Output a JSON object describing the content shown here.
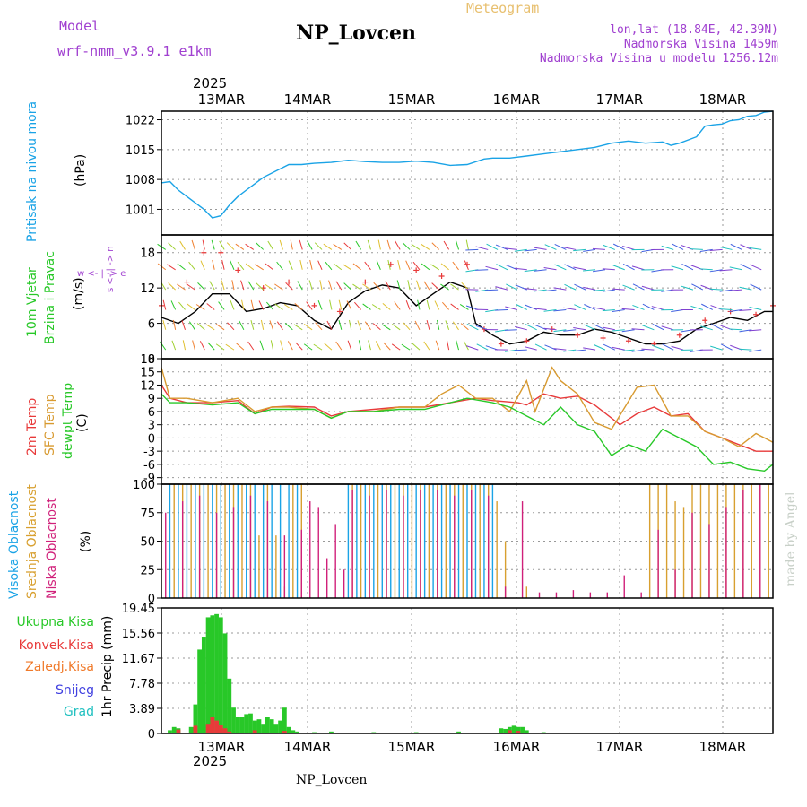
{
  "header": {
    "model_label": "Model",
    "model_name": "wrf-nmm_v3.9.1  e1km",
    "title": "NP_Lovcen",
    "meteogram": "Meteogram",
    "lonlat": "lon,lat (18.84E, 42.39N)",
    "altitude": "Nadmorska Visina 1459m",
    "model_altitude": "Nadmorska Visina u modelu 1256.12m",
    "year_top": "2025",
    "year_bottom": "2025",
    "footer": "NP_Lovcen",
    "credit": "made by Angel"
  },
  "colors": {
    "pressure": "#1aa3e6",
    "temp2m": "#e83a3a",
    "sfc": "#d89a30",
    "dewpt": "#28c828",
    "total_precip": "#28c828",
    "conv_precip": "#e83a3a",
    "frozen": "#f07a2a",
    "snow": "#4040e0",
    "graupel": "#20c0c0",
    "high_cloud": "#1aa3e6",
    "mid_cloud": "#d8a030",
    "low_cloud": "#d0207a",
    "model_text": "#a040d0",
    "meteogram_text": "#e8c070"
  },
  "chart_data": [
    {
      "type": "line",
      "panel": "pressure",
      "title": "",
      "ylabel": [
        "Pritisak na nivou mora",
        "(hPa)"
      ],
      "x_ticks": [
        "13MAR",
        "14MAR",
        "15MAR",
        "16MAR",
        "17MAR",
        "18MAR"
      ],
      "y_ticks": [
        1001,
        1008,
        1015,
        1022
      ],
      "xlim": [
        0,
        144
      ],
      "ylim": [
        995,
        1024
      ],
      "series": [
        {
          "x": [
            0,
            2,
            4,
            6,
            8,
            10,
            12,
            14,
            16,
            18,
            20,
            22,
            24,
            27,
            30,
            33,
            36,
            40,
            44,
            48,
            52,
            56,
            60,
            64,
            68,
            72,
            76,
            78,
            82,
            86,
            90,
            94,
            98,
            102,
            106,
            110,
            114,
            118,
            120,
            122,
            126,
            128,
            130,
            132,
            134,
            136,
            138,
            140,
            142,
            144
          ],
          "y": [
            1007.2,
            1007.5,
            1005.5,
            1004,
            1002.5,
            1001,
            999,
            999.5,
            1002,
            1004,
            1005.5,
            1007,
            1008.5,
            1010,
            1011.5,
            1011.5,
            1011.8,
            1012,
            1012.5,
            1012.2,
            1012,
            1012,
            1012.3,
            1012,
            1011.3,
            1011.5,
            1012.8,
            1013,
            1013,
            1013.5,
            1014,
            1014.5,
            1015,
            1015.5,
            1016.5,
            1017,
            1016.5,
            1016.8,
            1016,
            1016.5,
            1018,
            1020.5,
            1020.8,
            1021,
            1021.8,
            1022,
            1022.8,
            1023,
            1023.8,
            1024
          ]
        }
      ]
    },
    {
      "type": "line",
      "panel": "wind",
      "title": "",
      "ylabel": [
        "10m Vjetar",
        "Brzina i Pravac",
        "(m/s)"
      ],
      "compass": [
        "w <- | -> e",
        "s <- | -> n"
      ],
      "y_ticks": [
        0,
        6,
        12,
        18
      ],
      "xlim": [
        0,
        144
      ],
      "ylim": [
        0,
        21
      ],
      "series": [
        {
          "name": "speed",
          "x": [
            0,
            4,
            8,
            12,
            16,
            20,
            24,
            28,
            32,
            36,
            40,
            44,
            48,
            52,
            56,
            60,
            64,
            68,
            72,
            74,
            78,
            82,
            86,
            90,
            94,
            98,
            102,
            106,
            110,
            114,
            118,
            122,
            126,
            130,
            134,
            138,
            142,
            144
          ],
          "y": [
            7,
            6,
            8,
            11,
            11,
            8,
            8.5,
            9.5,
            9,
            6.5,
            5,
            9.5,
            11.5,
            12.5,
            12,
            9,
            11,
            13,
            12,
            6,
            4,
            2.5,
            3,
            4.5,
            4,
            4,
            5,
            4.5,
            3.5,
            2.5,
            2.5,
            3,
            5,
            6,
            7,
            6.5,
            8,
            8
          ]
        },
        {
          "name": "gust",
          "x": [
            0,
            6,
            10,
            14,
            18,
            24,
            30,
            36,
            42,
            48,
            54,
            60,
            66,
            72,
            76,
            80,
            86,
            92,
            98,
            104,
            110,
            116,
            122,
            128,
            134,
            140,
            144
          ],
          "y": [
            9,
            13,
            18,
            18,
            15,
            12,
            13,
            9,
            8,
            13,
            16,
            15,
            14,
            16,
            5,
            2.5,
            3,
            5,
            4,
            3.5,
            3,
            2.5,
            4,
            6.5,
            8,
            7.5,
            9
          ]
        }
      ]
    },
    {
      "type": "line",
      "panel": "temperature",
      "title": "",
      "ylabel": [
        "2m Temp",
        "SFC Temp",
        "dewpt Temp",
        "(C)"
      ],
      "y_ticks": [
        -9,
        -6,
        -3,
        0,
        3,
        6,
        9,
        12,
        15,
        18
      ],
      "xlim": [
        0,
        144
      ],
      "ylim": [
        -10.5,
        18
      ],
      "series": [
        {
          "name": "2m Temp",
          "x": [
            0,
            2,
            6,
            12,
            18,
            22,
            26,
            30,
            36,
            40,
            44,
            50,
            56,
            62,
            68,
            74,
            78,
            84,
            86,
            90,
            94,
            98,
            102,
            108,
            112,
            116,
            120,
            124,
            128,
            132,
            136,
            140,
            144
          ],
          "y": [
            12,
            9,
            8,
            8,
            8.5,
            5.5,
            7,
            7.2,
            7,
            5,
            6,
            6.5,
            7,
            7,
            8,
            9,
            8.5,
            8,
            7.5,
            10,
            9,
            9.5,
            7.5,
            3,
            5.5,
            7,
            5,
            5.5,
            1.5,
            0,
            -1.5,
            -3,
            -3
          ]
        },
        {
          "name": "SFC Temp",
          "x": [
            0,
            2,
            6,
            12,
            18,
            22,
            26,
            30,
            36,
            40,
            44,
            50,
            56,
            62,
            66,
            70,
            74,
            78,
            82,
            86,
            88,
            92,
            94,
            98,
            102,
            106,
            112,
            116,
            120,
            124,
            128,
            132,
            136,
            140,
            144
          ],
          "y": [
            16,
            9,
            9,
            8,
            9,
            6,
            7,
            7,
            6.5,
            4.5,
            6,
            6,
            7,
            7,
            10,
            12,
            9,
            9,
            6,
            13,
            6,
            16,
            13,
            10,
            3.5,
            2,
            11.5,
            12,
            5,
            5,
            1.5,
            0,
            -2,
            1,
            -1
          ]
        },
        {
          "name": "dewpt Temp",
          "x": [
            0,
            2,
            6,
            12,
            18,
            22,
            26,
            30,
            36,
            40,
            44,
            50,
            56,
            62,
            66,
            72,
            78,
            82,
            86,
            90,
            94,
            98,
            102,
            106,
            110,
            114,
            118,
            122,
            126,
            130,
            134,
            138,
            142,
            144
          ],
          "y": [
            10,
            8,
            8,
            7.5,
            8,
            5.5,
            6.5,
            6.5,
            6.5,
            4.5,
            6,
            6,
            6.5,
            6.5,
            7.5,
            9,
            8,
            7,
            5,
            3,
            7,
            3,
            1.5,
            -4,
            -1.5,
            -3,
            2,
            0,
            -2,
            -6,
            -5.5,
            -7,
            -7.5,
            -6
          ]
        }
      ]
    },
    {
      "type": "bar",
      "panel": "cloud",
      "title": "",
      "ylabel": [
        "Visoka Oblacnost",
        "Srednja Oblacnost",
        "Niska Oblacnost",
        "(%)"
      ],
      "y_ticks": [
        0,
        25,
        50,
        75,
        100
      ],
      "xlim": [
        0,
        144
      ],
      "ylim": [
        0,
        100
      ],
      "series": [
        {
          "name": "Visoka Oblacnost",
          "x": [
            2,
            4,
            6,
            8,
            10,
            12,
            14,
            16,
            18,
            20,
            22,
            24,
            26,
            28,
            30,
            32,
            44,
            46,
            48,
            50,
            52,
            54,
            56,
            58,
            60,
            62,
            64,
            66,
            68,
            70,
            72,
            74,
            76,
            78
          ],
          "values": [
            100,
            100,
            100,
            100,
            100,
            100,
            100,
            100,
            100,
            100,
            100,
            100,
            100,
            100,
            100,
            100,
            100,
            100,
            100,
            100,
            100,
            100,
            100,
            100,
            100,
            100,
            100,
            100,
            100,
            100,
            100,
            100,
            100,
            100
          ]
        },
        {
          "name": "Srednja Oblacnost",
          "x": [
            3,
            5,
            7,
            9,
            11,
            13,
            15,
            17,
            19,
            21,
            23,
            25,
            27,
            29,
            31,
            33,
            45,
            47,
            49,
            51,
            53,
            55,
            57,
            59,
            61,
            63,
            65,
            67,
            69,
            71,
            73,
            75,
            77,
            79,
            81,
            86,
            115,
            117,
            119,
            121,
            123,
            125,
            127,
            129,
            131,
            133,
            135,
            137,
            139,
            141,
            143
          ],
          "values": [
            100,
            100,
            100,
            100,
            100,
            100,
            100,
            100,
            100,
            100,
            55,
            100,
            55,
            10,
            100,
            100,
            100,
            100,
            100,
            100,
            100,
            100,
            100,
            100,
            100,
            100,
            100,
            100,
            100,
            100,
            100,
            100,
            100,
            85,
            50,
            10,
            100,
            100,
            100,
            85,
            80,
            100,
            100,
            100,
            100,
            100,
            100,
            100,
            100,
            100,
            100
          ]
        },
        {
          "name": "Niska Oblacnost",
          "x": [
            1,
            5,
            9,
            13,
            17,
            21,
            25,
            29,
            33,
            35,
            37,
            39,
            41,
            43,
            45,
            49,
            53,
            57,
            61,
            65,
            69,
            73,
            77,
            81,
            85,
            89,
            93,
            97,
            101,
            105,
            109,
            113,
            117,
            121,
            125,
            129,
            133,
            137,
            141
          ],
          "values": [
            75,
            85,
            90,
            75,
            80,
            90,
            85,
            55,
            60,
            85,
            80,
            35,
            65,
            25,
            95,
            90,
            95,
            90,
            95,
            95,
            90,
            95,
            90,
            10,
            85,
            5,
            5,
            7,
            5,
            5,
            20,
            5,
            60,
            25,
            75,
            65,
            80,
            95,
            100
          ]
        }
      ]
    },
    {
      "type": "bar",
      "panel": "precipitation",
      "title": "",
      "ylabel": [
        "1hr Precip (mm)"
      ],
      "legend": [
        "Ukupna Kisa",
        "Konvek.Kisa",
        "Zaledj.Kisa",
        "Snijeg",
        "Grad"
      ],
      "y_ticks": [
        0,
        3.89,
        7.78,
        11.67,
        15.56,
        19.45
      ],
      "xlim": [
        0,
        144
      ],
      "ylim": [
        0,
        19.45
      ],
      "series": [
        {
          "name": "Ukupna Kisa",
          "x": [
            2,
            3,
            4,
            7,
            8,
            9,
            10,
            11,
            12,
            13,
            14,
            15,
            16,
            17,
            18,
            19,
            20,
            21,
            22,
            23,
            24,
            25,
            26,
            27,
            28,
            29,
            30,
            31,
            32,
            36,
            40,
            50,
            60,
            70,
            80,
            81,
            82,
            83,
            84,
            85,
            86,
            90,
            100,
            110,
            120,
            130
          ],
          "values": [
            0.5,
            1,
            0.8,
            1,
            4.5,
            13,
            15,
            18,
            18.3,
            18.5,
            18,
            15.5,
            8.5,
            4,
            2.5,
            2.5,
            3,
            3.1,
            2,
            2.2,
            1.5,
            2.5,
            2.2,
            1.5,
            2,
            4,
            1,
            0.5,
            0.3,
            0.2,
            0.3,
            0.2,
            0.2,
            0.3,
            0.8,
            0.7,
            1,
            1.2,
            1,
            1,
            0.5,
            0.2,
            0.1,
            0.1,
            0.1,
            0.1
          ]
        },
        {
          "name": "Konvek.Kisa",
          "x": [
            4,
            8,
            11,
            12,
            13,
            14,
            15,
            16,
            22,
            29,
            82,
            84
          ],
          "values": [
            0.6,
            1.2,
            1.5,
            2.5,
            2,
            1.3,
            0.8,
            0.3,
            0.5,
            0.4,
            0.5,
            0.4
          ]
        }
      ]
    }
  ]
}
